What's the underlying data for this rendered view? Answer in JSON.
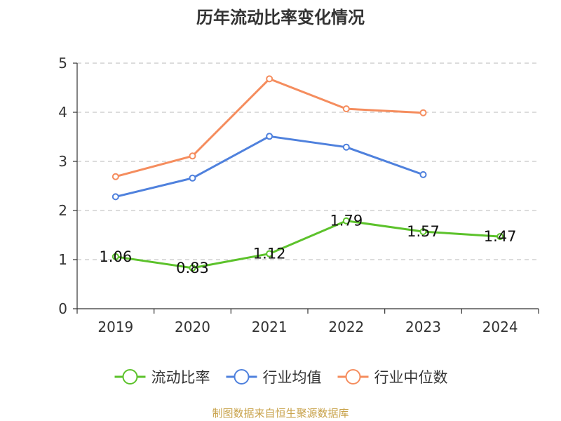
{
  "chart_data": {
    "type": "line",
    "title": "历年流动比率变化情况",
    "categories": [
      "2019",
      "2020",
      "2021",
      "2022",
      "2023",
      "2024"
    ],
    "y_ticks": [
      "0",
      "1",
      "2",
      "3",
      "4",
      "5"
    ],
    "ylim": [
      0,
      5
    ],
    "grid": true,
    "legend_position": "bottom",
    "series": [
      {
        "name": "流动比率",
        "color": "#5cc22b",
        "values": [
          1.06,
          0.83,
          1.12,
          1.79,
          1.57,
          1.47
        ],
        "labels": [
          "1.06",
          "0.83",
          "1.12",
          "1.79",
          "1.57",
          "1.47"
        ],
        "show_labels": true
      },
      {
        "name": "行业均值",
        "color": "#4f81dd",
        "values": [
          2.28,
          2.66,
          3.51,
          3.29,
          2.73,
          null
        ],
        "show_labels": false
      },
      {
        "name": "行业中位数",
        "color": "#f58d5e",
        "values": [
          2.69,
          3.11,
          4.68,
          4.07,
          3.99,
          null
        ],
        "show_labels": false
      }
    ]
  },
  "source_text": "制图数据来自恒生聚源数据库"
}
